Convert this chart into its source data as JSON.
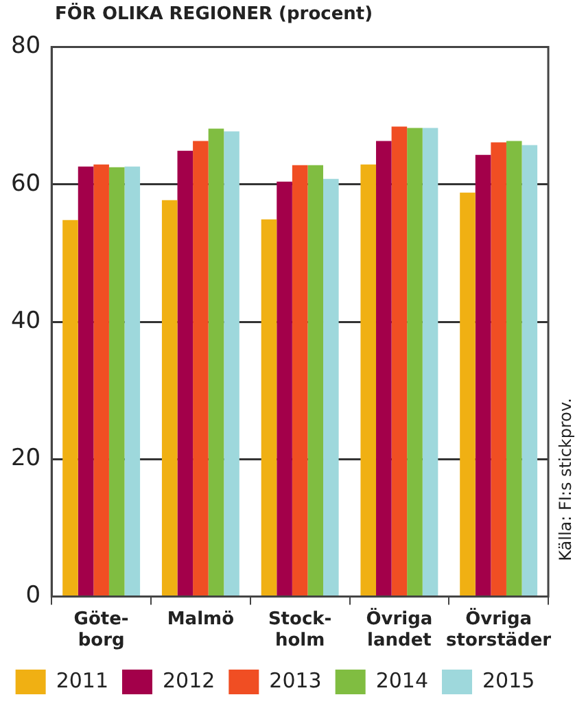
{
  "chart_data": {
    "type": "bar",
    "title": "FÖR OLIKA REGIONER (procent)",
    "categories": [
      "Göte-\nborg",
      "Malmö",
      "Stock-\nholm",
      "Övriga\nlandet",
      "Övriga\nstorstäder"
    ],
    "series": [
      {
        "name": "2011",
        "color": "#f0b013",
        "values": [
          54.8,
          57.7,
          54.9,
          62.9,
          58.8
        ]
      },
      {
        "name": "2012",
        "color": "#a3004a",
        "values": [
          62.6,
          64.9,
          60.4,
          66.3,
          64.3
        ]
      },
      {
        "name": "2013",
        "color": "#f04e23",
        "values": [
          62.9,
          66.3,
          62.8,
          68.4,
          66.1
        ]
      },
      {
        "name": "2014",
        "color": "#80bd41",
        "values": [
          62.5,
          68.1,
          62.8,
          68.2,
          66.3
        ]
      },
      {
        "name": "2015",
        "color": "#9ed8dc",
        "values": [
          62.6,
          67.7,
          60.8,
          68.2,
          65.7
        ]
      }
    ],
    "ylim": [
      0,
      80
    ],
    "yticks": [
      0,
      20,
      40,
      60,
      80
    ],
    "grid": "y",
    "legend": "bottom",
    "annotations": [
      "Källa: FI:s stickprov."
    ]
  }
}
